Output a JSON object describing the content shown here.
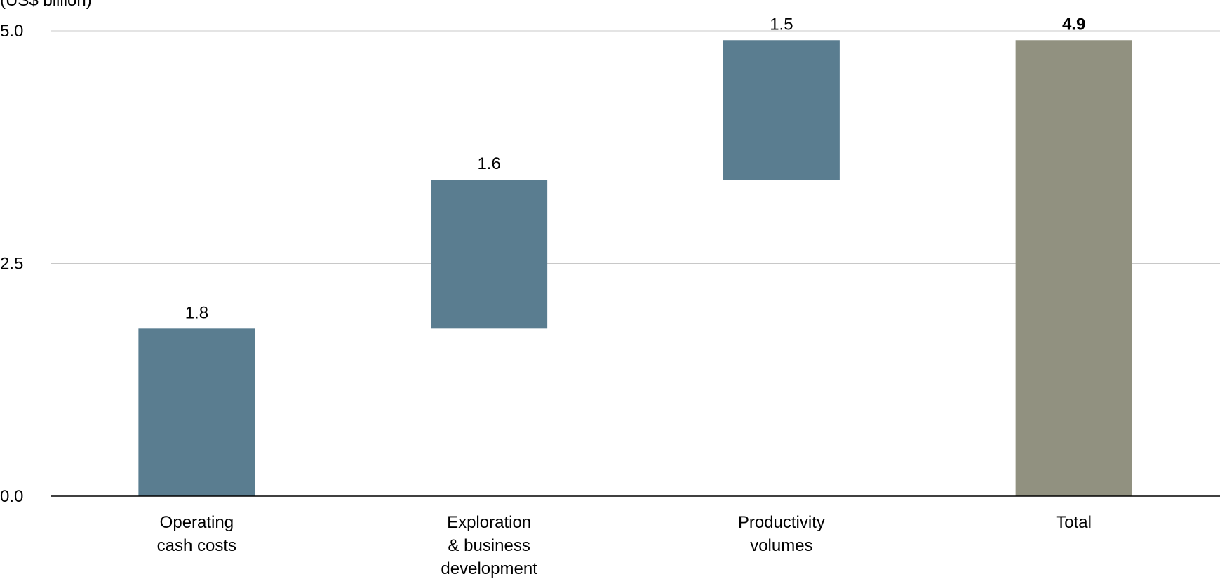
{
  "chart_data": {
    "type": "bar",
    "subtype": "waterfall",
    "unit_label": "(US$ billion)",
    "categories": [
      [
        "Operating",
        "cash costs"
      ],
      [
        "Exploration",
        "& business",
        "development"
      ],
      [
        "Productivity",
        "volumes"
      ],
      [
        "Total"
      ]
    ],
    "bars": [
      {
        "category": "Operating cash costs",
        "value": 1.8,
        "base": 0.0,
        "label": "1.8",
        "label_bold": false,
        "kind": "increment"
      },
      {
        "category": "Exploration & business development",
        "value": 1.6,
        "base": 1.8,
        "label": "1.6",
        "label_bold": false,
        "kind": "increment"
      },
      {
        "category": "Productivity volumes",
        "value": 1.5,
        "base": 3.4,
        "label": "1.5",
        "label_bold": false,
        "kind": "increment"
      },
      {
        "category": "Total",
        "value": 4.9,
        "base": 0.0,
        "label": "4.9",
        "label_bold": true,
        "kind": "total"
      }
    ],
    "yticks": [
      {
        "value": 0.0,
        "label": "0.0"
      },
      {
        "value": 2.5,
        "label": "2.5"
      },
      {
        "value": 5.0,
        "label": "5.0"
      }
    ],
    "ylim": [
      0,
      5.0
    ],
    "grid": true,
    "legend": "none",
    "colors": {
      "increment": "#5a7d90",
      "total": "#919180",
      "gridline": "#c8c8c8",
      "axis": "#000000"
    }
  }
}
